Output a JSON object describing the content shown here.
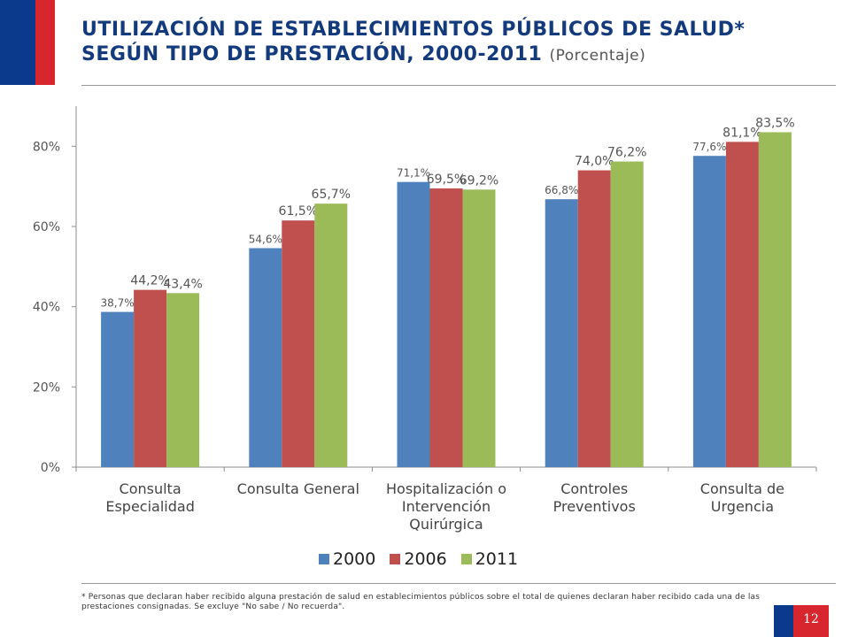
{
  "header": {
    "title_line1": "UTILIZACIÓN DE ESTABLECIMIENTOS PÚBLICOS DE SALUD*",
    "title_line2": "SEGÚN TIPO DE PRESTACIÓN,  2000-2011",
    "title_unit": "(Porcentaje)"
  },
  "footnote": "* Personas que declaran haber recibido alguna prestación de salud en establecimientos públicos sobre el total de quienes declaran haber recibido cada una de las prestaciones consignadas. Se excluye \"No sabe / No recuerda\".",
  "page_number": "12",
  "colors": {
    "s2000": "#4f81bd",
    "s2006": "#c0504d",
    "s2011": "#9bbb59"
  },
  "chart_data": {
    "type": "bar",
    "categories": [
      [
        "Consulta",
        "Especialidad"
      ],
      [
        "Consulta General"
      ],
      [
        "Hospitalización o",
        "Intervención",
        "Quirúrgica"
      ],
      [
        "Controles",
        "Preventivos"
      ],
      [
        "Consulta de",
        "Urgencia"
      ]
    ],
    "series": [
      {
        "name": "2000",
        "values": [
          38.7,
          54.6,
          71.1,
          66.8,
          77.6
        ],
        "labels": [
          "38,7%",
          "54,6%",
          "71,1%",
          "66,8%",
          "77,6%"
        ]
      },
      {
        "name": "2006",
        "values": [
          44.2,
          61.5,
          69.5,
          74.0,
          81.1
        ],
        "labels": [
          "44,2%",
          "61,5%",
          "69,5%",
          "74,0%",
          "81,1%"
        ]
      },
      {
        "name": "2011",
        "values": [
          43.4,
          65.7,
          69.2,
          76.2,
          83.5
        ],
        "labels": [
          "43,4%",
          "65,7%",
          "69,2%",
          "76,2%",
          "83,5%"
        ]
      }
    ],
    "yticks": [
      "0%",
      "20%",
      "40%",
      "60%",
      "80%"
    ],
    "ylim": [
      0,
      90
    ],
    "legend_position": "bottom",
    "grid": false
  }
}
